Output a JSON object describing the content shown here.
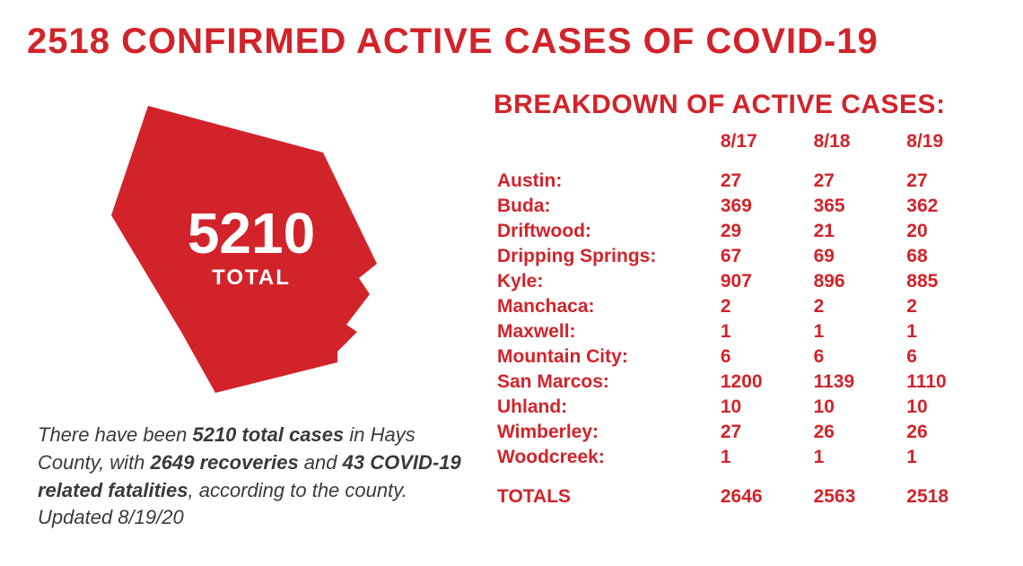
{
  "colors": {
    "primary": "#d2232a",
    "text": "#3a3a3a",
    "background": "#ffffff",
    "shape_fill": "#d2232a",
    "shape_text": "#ffffff"
  },
  "typography": {
    "title_fontsize": 40,
    "breakdown_title_fontsize": 30,
    "table_fontsize": 21,
    "summary_fontsize": 22,
    "county_number_fontsize": 64,
    "county_label_fontsize": 24
  },
  "title": "2518 CONFIRMED ACTIVE CASES OF COVID-19",
  "county_shape": {
    "number": "5210",
    "label": "TOTAL",
    "fill": "#d2232a"
  },
  "summary": {
    "pre": "There have been ",
    "b1": "5210 total cases",
    "mid1": " in Hays County, with ",
    "b2": "2649 recoveries",
    "mid2": " and ",
    "b3": "43 COVID-19 related fatalities",
    "post": ", according to the county. Updated 8/19/20"
  },
  "breakdown": {
    "title": "BREAKDOWN OF ACTIVE CASES:",
    "dates": [
      "8/17",
      "8/18",
      "8/19"
    ],
    "rows": [
      {
        "loc": "Austin:",
        "vals": [
          "27",
          "27",
          "27"
        ]
      },
      {
        "loc": "Buda:",
        "vals": [
          "369",
          "365",
          "362"
        ]
      },
      {
        "loc": "Driftwood:",
        "vals": [
          "29",
          "21",
          "20"
        ]
      },
      {
        "loc": "Dripping Springs:",
        "vals": [
          "67",
          "69",
          "68"
        ]
      },
      {
        "loc": "Kyle:",
        "vals": [
          "907",
          "896",
          "885"
        ]
      },
      {
        "loc": "Manchaca:",
        "vals": [
          "2",
          "2",
          "2"
        ]
      },
      {
        "loc": "Maxwell:",
        "vals": [
          "1",
          "1",
          "1"
        ]
      },
      {
        "loc": "Mountain City:",
        "vals": [
          "6",
          "6",
          "6"
        ]
      },
      {
        "loc": "San Marcos:",
        "vals": [
          "1200",
          "1139",
          "1110"
        ]
      },
      {
        "loc": "Uhland:",
        "vals": [
          "10",
          "10",
          "10"
        ]
      },
      {
        "loc": "Wimberley:",
        "vals": [
          "27",
          "26",
          "26"
        ]
      },
      {
        "loc": "Woodcreek:",
        "vals": [
          "1",
          "1",
          "1"
        ]
      }
    ],
    "totals": {
      "label": "TOTALS",
      "vals": [
        "2646",
        "2563",
        "2518"
      ]
    }
  }
}
